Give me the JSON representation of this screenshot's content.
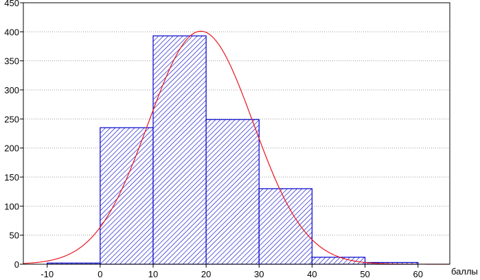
{
  "chart_data": {
    "type": "bar",
    "xlabel": "баллы",
    "ylabel": "",
    "title": "",
    "xlim": [
      -14.5,
      66
    ],
    "ylim": [
      0,
      450
    ],
    "x_ticks": [
      -10,
      0,
      10,
      20,
      30,
      40,
      50,
      60
    ],
    "y_ticks": [
      0,
      50,
      100,
      150,
      200,
      250,
      300,
      350,
      400,
      450
    ],
    "x_tick_labels": [
      "-10",
      "0",
      "10",
      "20",
      "30",
      "40",
      "50",
      "60"
    ],
    "y_tick_labels": [
      "0",
      "50",
      "100",
      "150",
      "200",
      "250",
      "300",
      "350",
      "400",
      "450"
    ],
    "bins": [
      {
        "from": -10,
        "to": 0,
        "value": 2
      },
      {
        "from": 0,
        "to": 10,
        "value": 235
      },
      {
        "from": 10,
        "to": 20,
        "value": 393
      },
      {
        "from": 20,
        "to": 30,
        "value": 249
      },
      {
        "from": 30,
        "to": 40,
        "value": 130
      },
      {
        "from": 40,
        "to": 50,
        "value": 12
      },
      {
        "from": 50,
        "to": 60,
        "value": 3
      }
    ],
    "fit_curve": {
      "type": "normal",
      "peak_x": 19,
      "peak_y": 401
    },
    "grid": true,
    "colors": {
      "bar_stroke": "#0000cc",
      "bar_hatch": "#1a1ac8",
      "bar_fill": "#ffffff",
      "curve": "#e8141e",
      "grid": "#9a9a9a",
      "axis": "#000000"
    }
  }
}
